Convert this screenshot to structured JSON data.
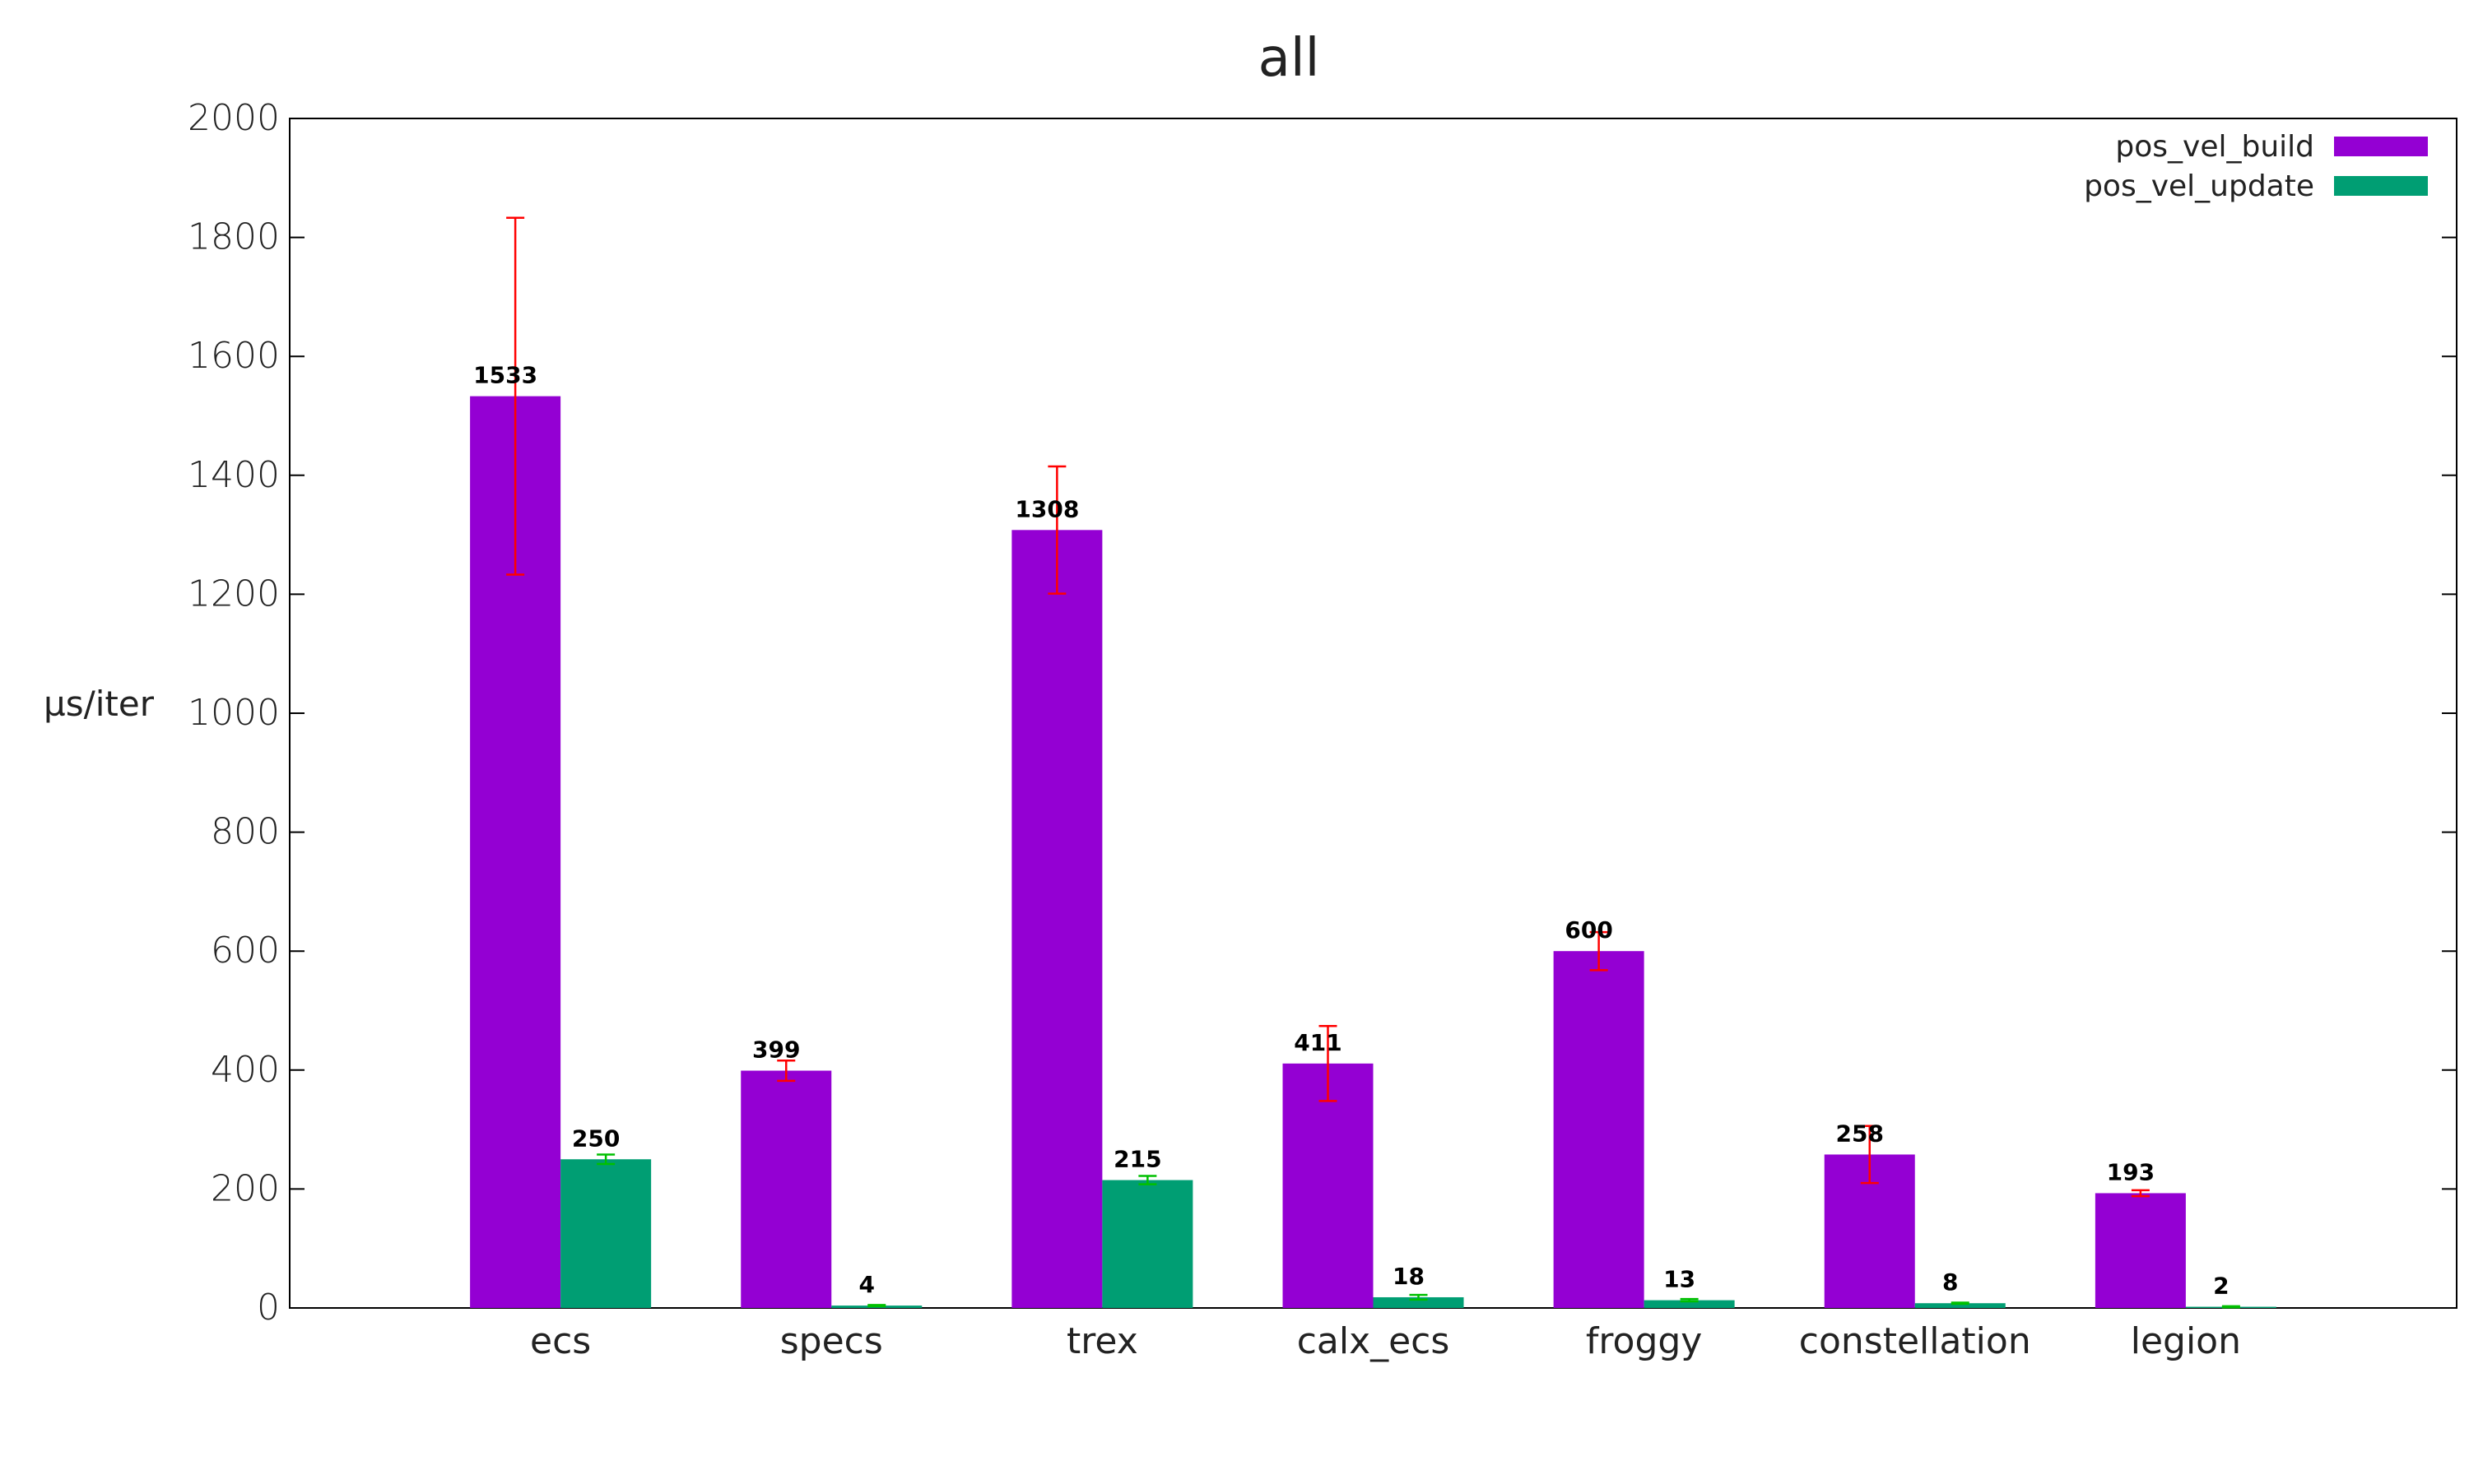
{
  "chart_data": {
    "type": "bar",
    "title": "all",
    "xlabel": "",
    "ylabel": "µs/iter",
    "ylim": [
      0,
      2000
    ],
    "yticks": [
      0,
      200,
      400,
      600,
      800,
      1000,
      1200,
      1400,
      1600,
      1800,
      2000
    ],
    "categories": [
      "ecs",
      "specs",
      "trex",
      "calx_ecs",
      "froggy",
      "constellation",
      "legion"
    ],
    "legend_position": "top-right",
    "grid": false,
    "series": [
      {
        "name": "pos_vel_build",
        "color": "#9400d3",
        "error_color": "#ff0000",
        "values": [
          1533,
          399,
          1308,
          411,
          600,
          258,
          193
        ],
        "errors": [
          300,
          17,
          107,
          63,
          32,
          48,
          5
        ]
      },
      {
        "name": "pos_vel_update",
        "color": "#009e73",
        "error_color": "#00c000",
        "values": [
          250,
          4,
          215,
          18,
          13,
          8,
          2
        ],
        "errors": [
          8,
          1,
          7,
          4,
          2,
          1,
          1
        ]
      }
    ]
  }
}
